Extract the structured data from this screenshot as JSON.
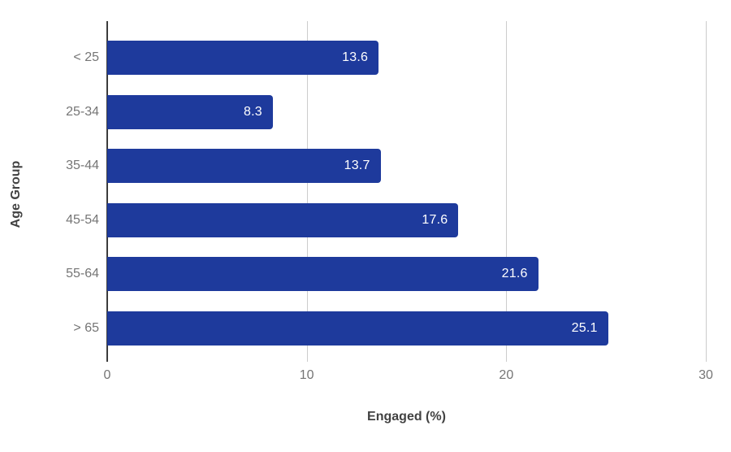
{
  "chart_data": {
    "type": "bar",
    "orientation": "horizontal",
    "title": "",
    "xlabel": "Engaged (%)",
    "ylabel": "Age Group",
    "categories": [
      "< 25",
      "25-34",
      "35-44",
      "45-54",
      "55-64",
      "> 65"
    ],
    "values": [
      13.6,
      8.3,
      13.7,
      17.6,
      21.6,
      25.1
    ],
    "value_labels": [
      "13.6",
      "8.3",
      "13.7",
      "17.6",
      "21.6",
      "25.1"
    ],
    "xlim": [
      0,
      30
    ],
    "xticks": [
      0,
      10,
      20,
      30
    ],
    "grid": "vertical-gridlines-on",
    "legend": "none",
    "colors": {
      "bar": "#1e3a9c",
      "value_label": "#ffffff",
      "axis_text": "#757575",
      "axis_title": "#424242",
      "gridline": "#cccccc",
      "baseline": "#3c3c3c",
      "background": "#ffffff"
    }
  }
}
